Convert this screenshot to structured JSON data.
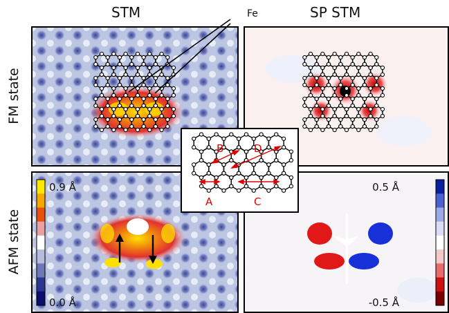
{
  "column_titles": {
    "left": "STM",
    "right": "SP STM"
  },
  "row_titles": {
    "top": "FM state",
    "bottom": "AFM state"
  },
  "fe_label": "Fe",
  "stm_colorbar": {
    "max_label": "0.9 Å",
    "min_label": "0.0 Å",
    "colors": [
      "#ffe800",
      "#f5a800",
      "#e85010",
      "#e8a0a0",
      "#ffffff",
      "#b7bcdc",
      "#6c77b8",
      "#2a3690",
      "#0a0f6e"
    ]
  },
  "sp_colorbar": {
    "max_label": "0.5 Å",
    "min_label": "-0.5 Å",
    "colors": [
      "#0a1f9e",
      "#4a62d0",
      "#9aaae6",
      "#d8ddf5",
      "#ffffff",
      "#f5c8c8",
      "#e86a6a",
      "#cc1010",
      "#7a0000"
    ]
  },
  "inset_labels": {
    "a": "A",
    "b": "B",
    "c": "C",
    "d": "D"
  },
  "colors": {
    "stm_bg": "#bcc6e2",
    "stm_spot": "#3a4699",
    "sp_bg": "#fbf0f0",
    "red": "#e00000"
  }
}
